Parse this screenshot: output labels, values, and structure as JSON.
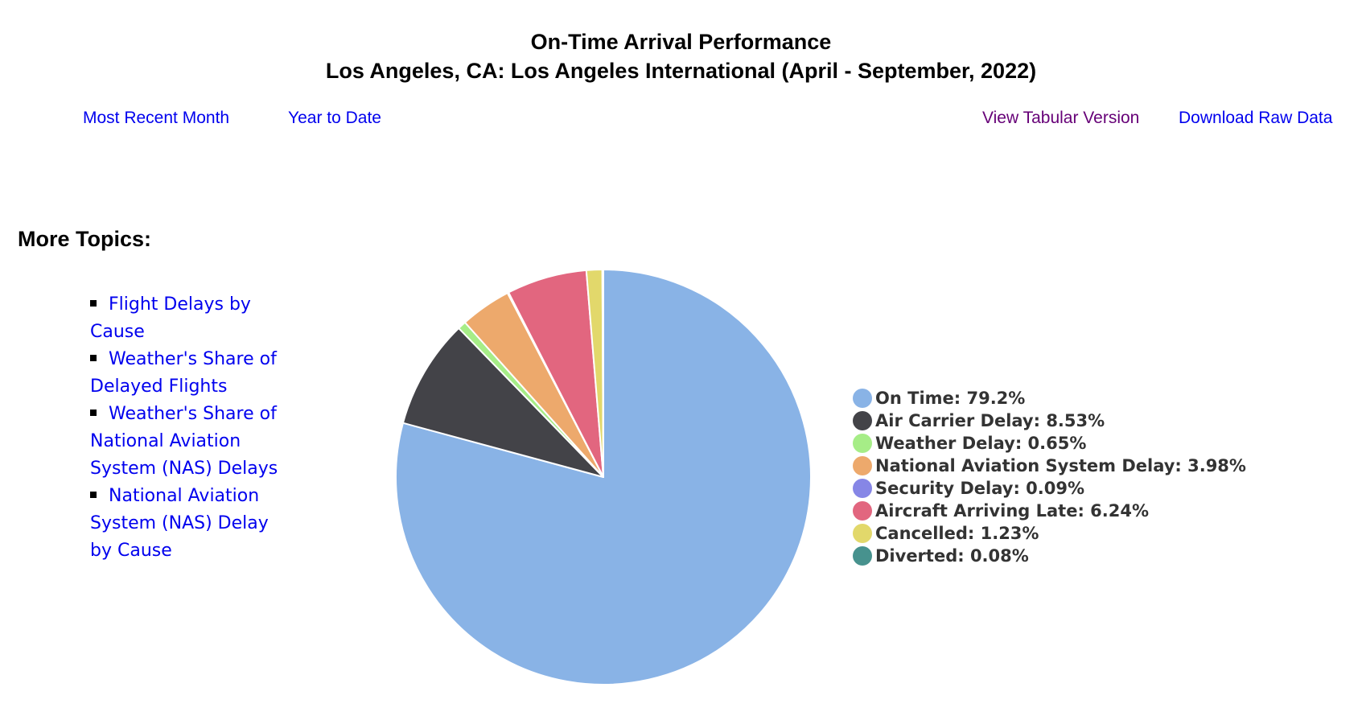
{
  "header": {
    "title_line1": "On-Time Arrival Performance",
    "title_line2": "Los Angeles, CA: Los Angeles International (April - September, 2022)"
  },
  "nav": {
    "most_recent_month": "Most Recent Month",
    "year_to_date": "Year to Date",
    "view_tabular": "View Tabular Version",
    "download_raw": "Download Raw Data"
  },
  "sidebar": {
    "heading": "More Topics:",
    "items": [
      {
        "label": "Flight Delays by Cause"
      },
      {
        "label": "Weather's Share of Delayed Flights"
      },
      {
        "label": "Weather's Share of National Aviation System (NAS) Delays"
      },
      {
        "label": "National Aviation System (NAS) Delay by Cause"
      }
    ]
  },
  "colors": {
    "link": "#0000ee",
    "visited_link": "#660077",
    "legend_text": "#333333"
  },
  "chart_data": {
    "type": "pie",
    "title": "On-Time Arrival Performance",
    "subtitle": "Los Angeles, CA: Los Angeles International (April - September, 2022)",
    "start": "12 o'clock",
    "direction": "clockwise",
    "legend_position": "right",
    "slices": [
      {
        "label": "On Time",
        "value": 79.2,
        "display": "79.2%",
        "color": "#89b3e6"
      },
      {
        "label": "Air Carrier Delay",
        "value": 8.53,
        "display": "8.53%",
        "color": "#434348"
      },
      {
        "label": "Weather Delay",
        "value": 0.65,
        "display": "0.65%",
        "color": "#a6ed87"
      },
      {
        "label": "National Aviation System Delay",
        "value": 3.98,
        "display": "3.98%",
        "color": "#eda96c"
      },
      {
        "label": "Security Delay",
        "value": 0.09,
        "display": "0.09%",
        "color": "#8686e6"
      },
      {
        "label": "Aircraft Arriving Late",
        "value": 6.24,
        "display": "6.24%",
        "color": "#e2667f"
      },
      {
        "label": "Cancelled",
        "value": 1.23,
        "display": "1.23%",
        "color": "#e2d86b"
      },
      {
        "label": "Diverted",
        "value": 0.08,
        "display": "0.08%",
        "color": "#47928e"
      }
    ]
  }
}
